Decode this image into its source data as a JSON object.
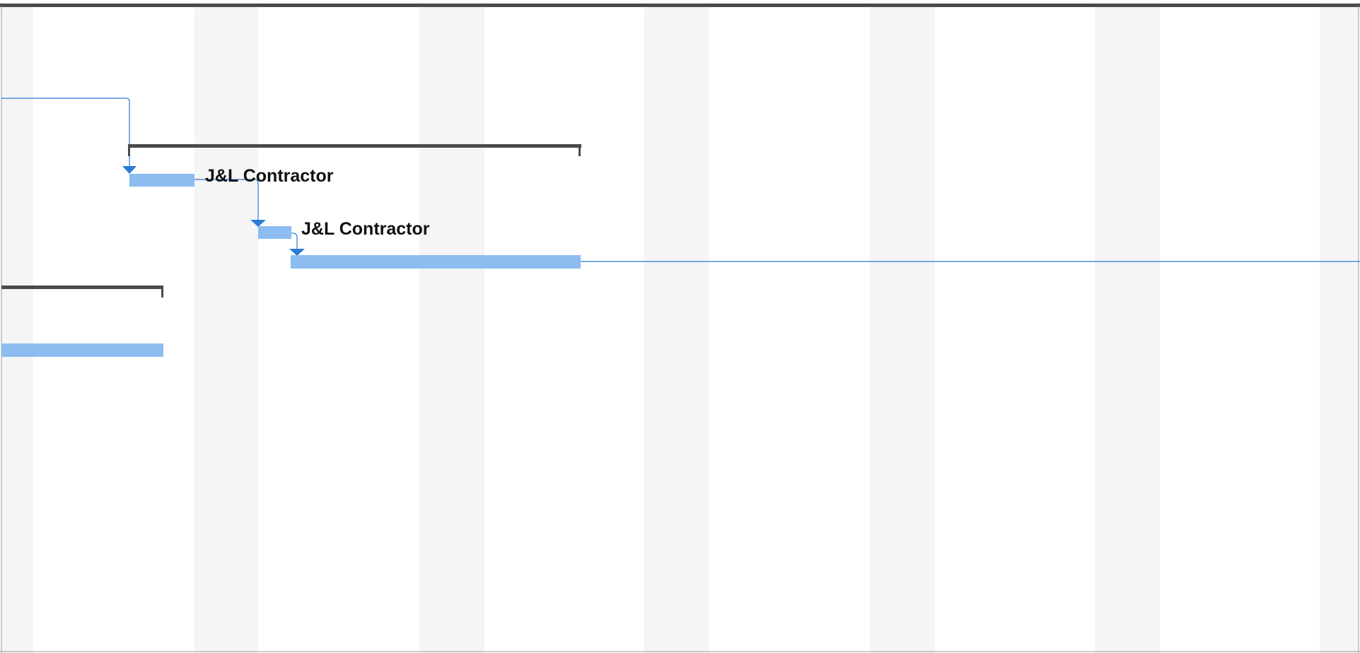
{
  "gantt": {
    "colors": {
      "background": "#ffffff",
      "weekend_shade": "#f5f5f5",
      "summary_bar": "#4a4a4a",
      "task_bar": "#8dbcf0",
      "link_line": "#2b7bd6",
      "border": "#9a9a9a",
      "label_text": "#111111"
    },
    "resource_labels": [
      {
        "task": "task-bar-2",
        "text": "J&L Contractor"
      },
      {
        "task": "task-bar-3",
        "text": "J&L Contractor"
      }
    ]
  }
}
